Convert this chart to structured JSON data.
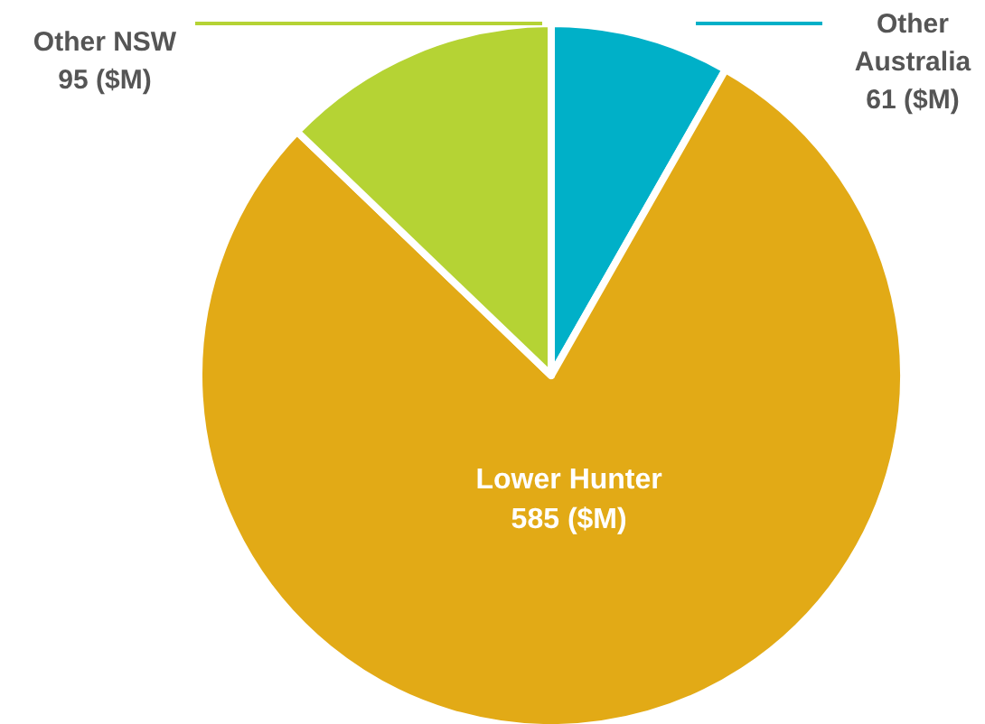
{
  "chart_data": {
    "type": "pie",
    "categories": [
      "Other Australia",
      "Lower Hunter",
      "Other NSW"
    ],
    "values": [
      61,
      585,
      95
    ],
    "colors": [
      "#00b0c8",
      "#e2aa16",
      "#b5d334"
    ],
    "value_labels": [
      "61 ($M)",
      "585 ($M)",
      "95 ($M)"
    ]
  }
}
